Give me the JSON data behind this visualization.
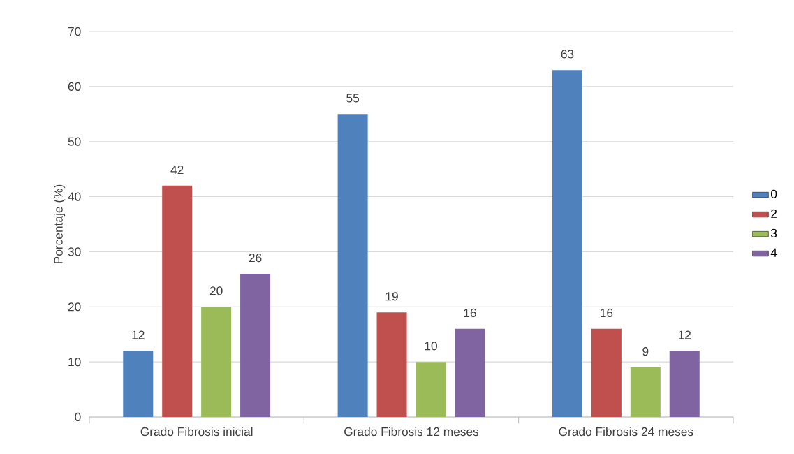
{
  "chart_data": {
    "type": "bar",
    "ylabel": "Porcentaje (%)",
    "categories": [
      "Grado Fibrosis inicial",
      "Grado Fibrosis 12 meses",
      "Grado Fibrosis 24 meses"
    ],
    "series": [
      {
        "name": "0",
        "color": "#4f81bd",
        "values": [
          12,
          55,
          63
        ]
      },
      {
        "name": "2",
        "color": "#c0504d",
        "values": [
          42,
          19,
          16
        ]
      },
      {
        "name": "3",
        "color": "#9bbb59",
        "values": [
          20,
          10,
          9
        ]
      },
      {
        "name": "4",
        "color": "#8064a2",
        "values": [
          26,
          16,
          12
        ]
      }
    ],
    "ylim": [
      0,
      70
    ],
    "yticks": [
      0,
      10,
      20,
      30,
      40,
      50,
      60,
      70
    ],
    "grid": "y",
    "legend": "right",
    "data_labels": true
  }
}
